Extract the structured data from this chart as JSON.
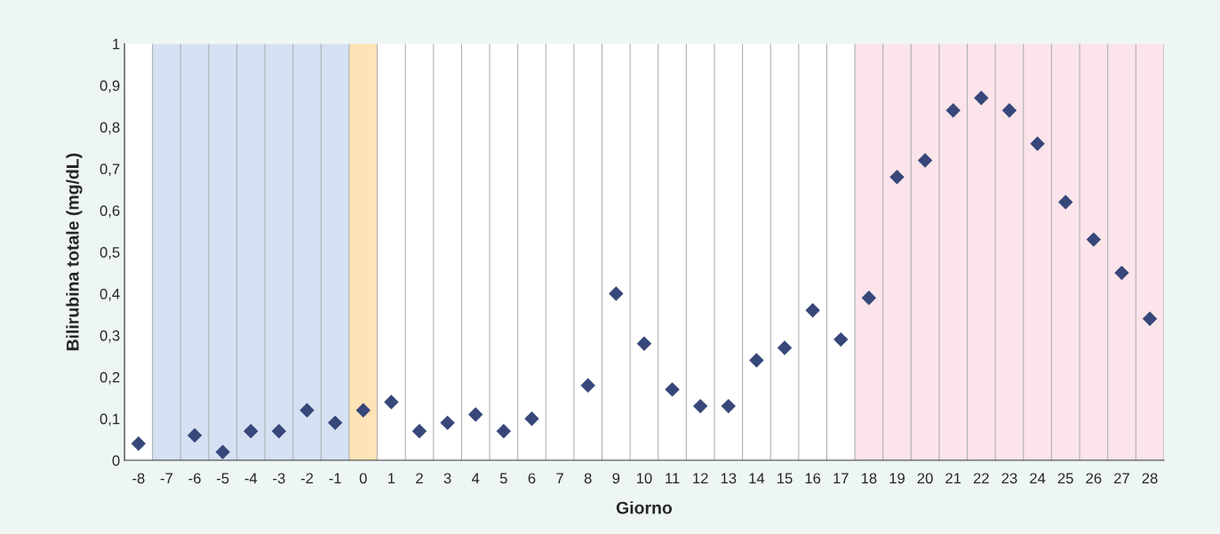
{
  "chart_data": {
    "type": "scatter",
    "xlabel": "Giorno",
    "ylabel": "Bilirubina totale (mg/dL)",
    "categories": [
      "-8",
      "-7",
      "-6",
      "-5",
      "-4",
      "-3",
      "-2",
      "-1",
      "0",
      "1",
      "2",
      "3",
      "4",
      "5",
      "6",
      "7",
      "8",
      "9",
      "10",
      "11",
      "12",
      "13",
      "14",
      "15",
      "16",
      "17",
      "18",
      "19",
      "20",
      "21",
      "22",
      "23",
      "24",
      "25",
      "26",
      "27",
      "28"
    ],
    "series": [
      {
        "color": "#37477a",
        "values": [
          0.04,
          null,
          0.06,
          0.02,
          0.07,
          0.07,
          0.12,
          0.09,
          0.12,
          0.14,
          0.07,
          0.09,
          0.11,
          0.07,
          0.1,
          null,
          0.18,
          0.4,
          0.28,
          0.17,
          0.13,
          0.13,
          0.24,
          0.27,
          0.36,
          0.29,
          0.39,
          0.68,
          0.72,
          0.84,
          0.87,
          0.84,
          0.76,
          0.62,
          0.53,
          0.45,
          0.34
        ]
      }
    ],
    "ylim": [
      0,
      1
    ],
    "yticks": [
      0,
      {
        "value": 0.1,
        "label": "0,1"
      },
      {
        "value": 0.2,
        "label": "0,2"
      },
      {
        "value": 0.3,
        "label": "0,3"
      },
      {
        "value": 0.4,
        "label": "0,4"
      },
      {
        "value": 0.5,
        "label": "0,5"
      },
      {
        "value": 0.6,
        "label": "0,6"
      },
      {
        "value": 0.7,
        "label": "0,7"
      },
      {
        "value": 0.8,
        "label": "0,8"
      },
      {
        "value": 0.9,
        "label": "0,9"
      },
      1
    ],
    "bands": [
      {
        "axis": "x",
        "from": "-7",
        "to": "-1",
        "color": "#d5e1f3"
      },
      {
        "axis": "x",
        "from": "0",
        "to": "0",
        "color": "#fde3b6"
      },
      {
        "axis": "x",
        "from": "18",
        "to": "28",
        "color": "#fbe4ea"
      }
    ],
    "grid": "x",
    "marker": "diamond",
    "legend": false
  }
}
